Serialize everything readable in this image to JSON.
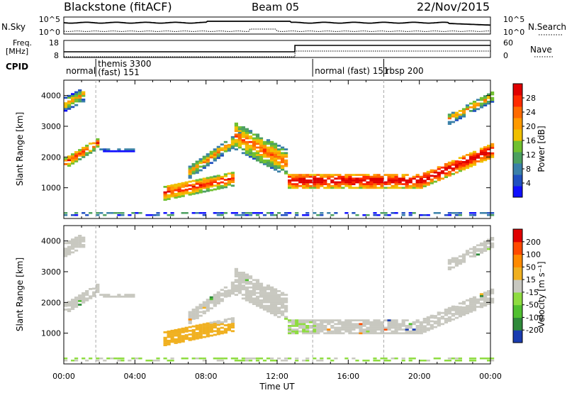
{
  "header": {
    "station": "Blackstone (fitACF)",
    "beam": "Beam 05",
    "date": "22/Nov/2015"
  },
  "top_panels": {
    "nsky_label": "N.Sky",
    "nsky_ticks": [
      "10^5",
      "10^0"
    ],
    "nsearch_label": "N.Search",
    "nsearch_ticks": [
      "10^5",
      "10^0"
    ],
    "freq_label": [
      "Freq.",
      "[MHz]"
    ],
    "freq_ticks": [
      "18",
      "8"
    ],
    "nave_label": "Nave",
    "nave_ticks": [
      "60",
      "0"
    ],
    "cpid_label": "CPID",
    "cpid_modes": [
      {
        "name": "normal",
        "start_h": 0,
        "end_h": 1.8,
        "text_lines": [
          "normal"
        ]
      },
      {
        "name": "themis 3300 (fast) 151",
        "start_h": 1.8,
        "end_h": 14.0,
        "text_lines": [
          "themis 3300",
          "(fast) 151"
        ]
      },
      {
        "name": "normal (fast) 151",
        "start_h": 14.0,
        "end_h": 18.0,
        "text_lines": [
          "normal (fast) 151"
        ]
      },
      {
        "name": "rbsp 200",
        "start_h": 18.0,
        "end_h": 24.0,
        "text_lines": [
          "rbsp 200"
        ]
      }
    ],
    "freq_step_hour": 13.0
  },
  "chart_data": [
    {
      "type": "heatmap",
      "name": "power",
      "ylabel": "Slant Range [km]",
      "yticks": [
        1000,
        2000,
        3000,
        4000
      ],
      "ylim": [
        0,
        4500
      ],
      "xlim_hours": [
        0,
        24
      ],
      "colorbar": {
        "label": "Power [dB]",
        "ticks": [
          "4",
          "8",
          "12",
          "16",
          "20",
          "24",
          "28"
        ],
        "colors": [
          "#1010ff",
          "#2050c0",
          "#3a80a8",
          "#4ca060",
          "#70c030",
          "#f0c000",
          "#ff9a00",
          "#ff6a00",
          "#ff2a00",
          "#e00000"
        ]
      }
    },
    {
      "type": "heatmap",
      "name": "velocity",
      "ylabel": "Slant Range [km]",
      "yticks": [
        1000,
        2000,
        3000,
        4000
      ],
      "ylim": [
        0,
        4500
      ],
      "xlim_hours": [
        0,
        24
      ],
      "xlabel": "Time UT",
      "xticks": [
        "00:00",
        "04:00",
        "08:00",
        "12:00",
        "16:00",
        "20:00",
        "00:00"
      ],
      "colorbar": {
        "label": "Velocity [m s⁻¹]",
        "ticks": [
          "200",
          "100",
          "50",
          "15",
          "-15",
          "-50",
          "-100",
          "-200"
        ],
        "colors": [
          "#1a3cb0",
          "#2f8a3a",
          "#50c030",
          "#8edc40",
          "#c8c8c0",
          "#f0b020",
          "#ff8a00",
          "#ff4a00",
          "#e00000"
        ]
      }
    }
  ]
}
